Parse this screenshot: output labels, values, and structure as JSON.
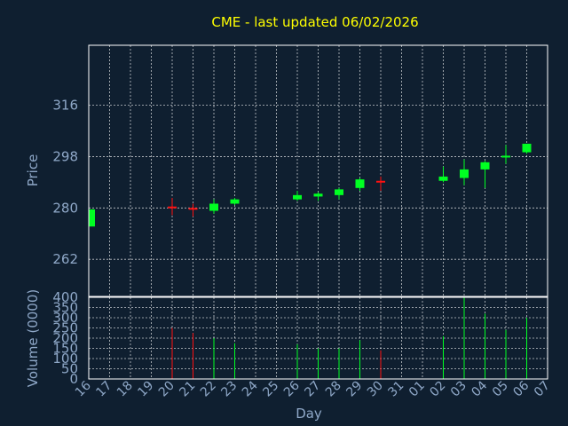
{
  "chart_data": {
    "type": "candlestick",
    "title": "CME - last updated 06/02/2026",
    "xlabel": "Day",
    "price_ylabel": "Price",
    "volume_ylabel": "Volume (0000)",
    "x_ticks": [
      "16",
      "17",
      "18",
      "19",
      "20",
      "21",
      "22",
      "23",
      "24",
      "25",
      "26",
      "27",
      "28",
      "29",
      "30",
      "31",
      "01",
      "02",
      "03",
      "04",
      "05",
      "06",
      "07"
    ],
    "price_ticks": [
      262,
      280,
      298,
      316
    ],
    "price_ylim": [
      249,
      337
    ],
    "volume_ticks": [
      0,
      50,
      100,
      150,
      200,
      250,
      300,
      350,
      400
    ],
    "volume_ylim": [
      0,
      400
    ],
    "candles": [
      {
        "day": "16",
        "open": 273.5,
        "close": 279.5,
        "high": 279.5,
        "low": 273.5,
        "volume": 0
      },
      {
        "day": "20",
        "open": 280.5,
        "close": 280.3,
        "high": 283.5,
        "low": 277.5,
        "volume": 250
      },
      {
        "day": "21",
        "open": 280.0,
        "close": 279.5,
        "high": 281.5,
        "low": 277.0,
        "volume": 225
      },
      {
        "day": "22",
        "open": 279.0,
        "close": 281.5,
        "high": 283.0,
        "low": 278.0,
        "volume": 200
      },
      {
        "day": "23",
        "open": 281.5,
        "close": 283.0,
        "high": 283.5,
        "low": 281.0,
        "volume": 175
      },
      {
        "day": "26",
        "open": 283.0,
        "close": 284.5,
        "high": 286.0,
        "low": 282.5,
        "volume": 170
      },
      {
        "day": "27",
        "open": 284.0,
        "close": 285.0,
        "high": 285.5,
        "low": 282.5,
        "volume": 150
      },
      {
        "day": "28",
        "open": 284.5,
        "close": 286.5,
        "high": 287.0,
        "low": 283.0,
        "volume": 150
      },
      {
        "day": "29",
        "open": 287.0,
        "close": 290.0,
        "high": 290.5,
        "low": 286.0,
        "volume": 190
      },
      {
        "day": "30",
        "open": 289.5,
        "close": 289.3,
        "high": 291.0,
        "low": 286.0,
        "volume": 140
      },
      {
        "day": "02",
        "open": 289.5,
        "close": 291.0,
        "high": 294.5,
        "low": 289.0,
        "volume": 210
      },
      {
        "day": "03",
        "open": 290.5,
        "close": 293.5,
        "high": 297.0,
        "low": 288.0,
        "volume": 400
      },
      {
        "day": "04",
        "open": 293.5,
        "close": 296.0,
        "high": 296.5,
        "low": 287.0,
        "volume": 320
      },
      {
        "day": "05",
        "open": 298.0,
        "close": 298.3,
        "high": 302.0,
        "low": 295.5,
        "volume": 240
      },
      {
        "day": "06",
        "open": 299.5,
        "close": 302.5,
        "high": 302.5,
        "low": 299.0,
        "volume": 300
      }
    ],
    "up_color": "#00ff22",
    "down_color": "#ff1111",
    "grid": true
  }
}
